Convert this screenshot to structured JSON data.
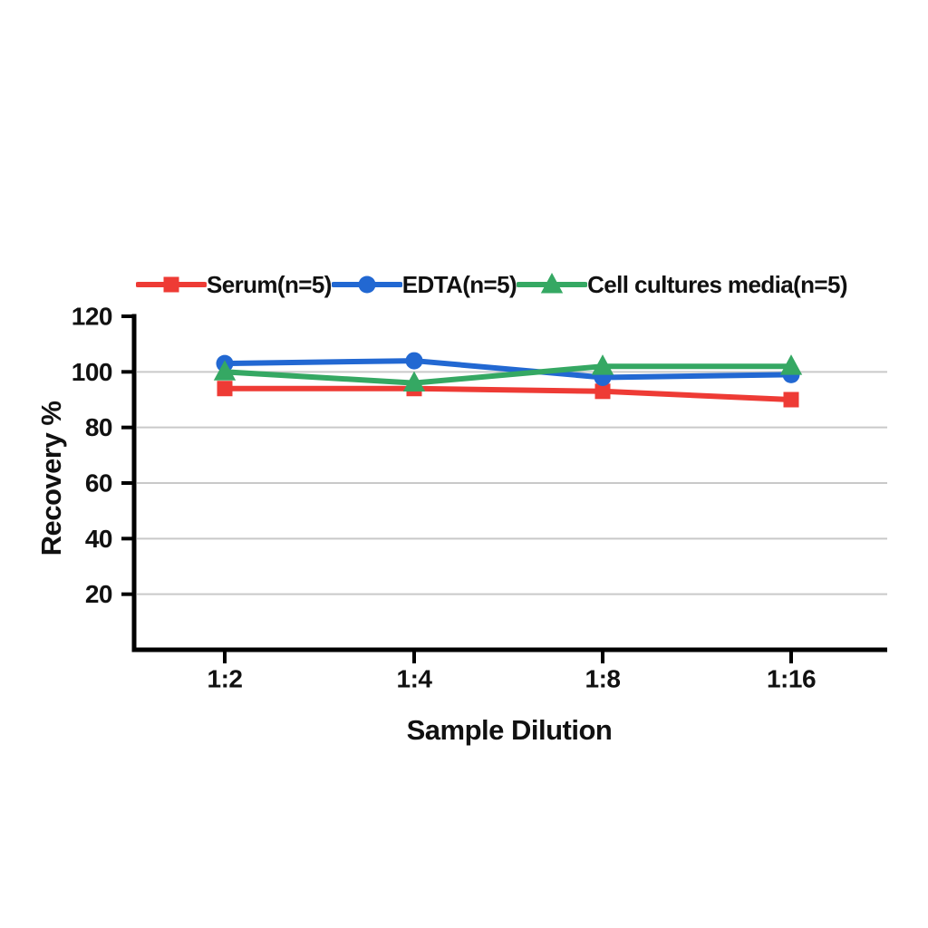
{
  "chart_data": {
    "type": "line",
    "title": "",
    "xlabel": "Sample Dilution",
    "ylabel": "Recovery %",
    "categories": [
      "1:2",
      "1:4",
      "1:8",
      "1:16"
    ],
    "series": [
      {
        "name": "Serum(n=5)",
        "color": "#ee3b35",
        "marker": "square",
        "values": [
          94,
          94,
          93,
          90
        ]
      },
      {
        "name": "EDTA(n=5)",
        "color": "#2268d2",
        "marker": "circle",
        "values": [
          103,
          104,
          98,
          99
        ]
      },
      {
        "name": "Cell cultures media(n=5)",
        "color": "#35a863",
        "marker": "triangle",
        "values": [
          100,
          96,
          102,
          102
        ]
      }
    ],
    "ylim": [
      0,
      120
    ],
    "yticks": [
      20,
      40,
      60,
      80,
      100,
      120
    ],
    "gridlines": [
      20,
      40,
      60,
      80,
      100
    ],
    "grid_color": "#c9c9c9",
    "axis_color": "#000000",
    "text_color": "#111111",
    "legend_position": "top",
    "grid": "horizontal-only"
  }
}
